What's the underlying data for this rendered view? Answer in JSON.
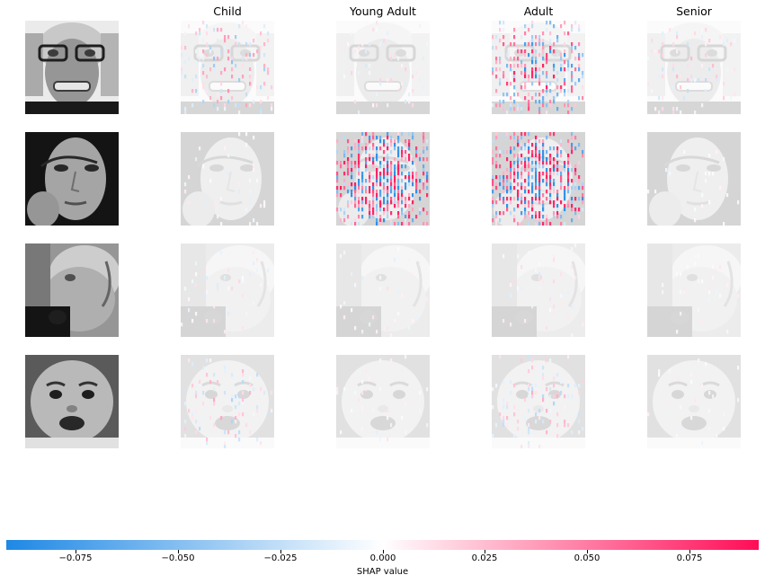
{
  "chart_data": {
    "type": "heatmap",
    "title": "",
    "columns": [
      "Child",
      "Young Adult",
      "Adult",
      "Senior"
    ],
    "rows": 4,
    "panels_per_row": 5,
    "first_column": "input image (grayscale)",
    "colorbar": {
      "label": "SHAP value",
      "min": -0.092,
      "max": 0.092,
      "ticks": [
        -0.075,
        -0.05,
        -0.025,
        0.0,
        0.025,
        0.05,
        0.075
      ],
      "tick_labels": [
        "−0.075",
        "−0.050",
        "−0.025",
        "0.000",
        "0.025",
        "0.050",
        "0.075"
      ],
      "negative_color": "#1e88e5",
      "zero_color": "#ffffff",
      "positive_color": "#ff0d57"
    },
    "faces": [
      "senior",
      "young-adult",
      "senior-profile",
      "child"
    ],
    "attribution_intensity": [
      [
        0.35,
        0.15,
        0.7,
        0.2
      ],
      [
        0.1,
        1.0,
        1.0,
        0.05
      ],
      [
        0.12,
        0.1,
        0.12,
        0.08
      ],
      [
        0.25,
        0.1,
        0.25,
        0.08
      ]
    ]
  }
}
